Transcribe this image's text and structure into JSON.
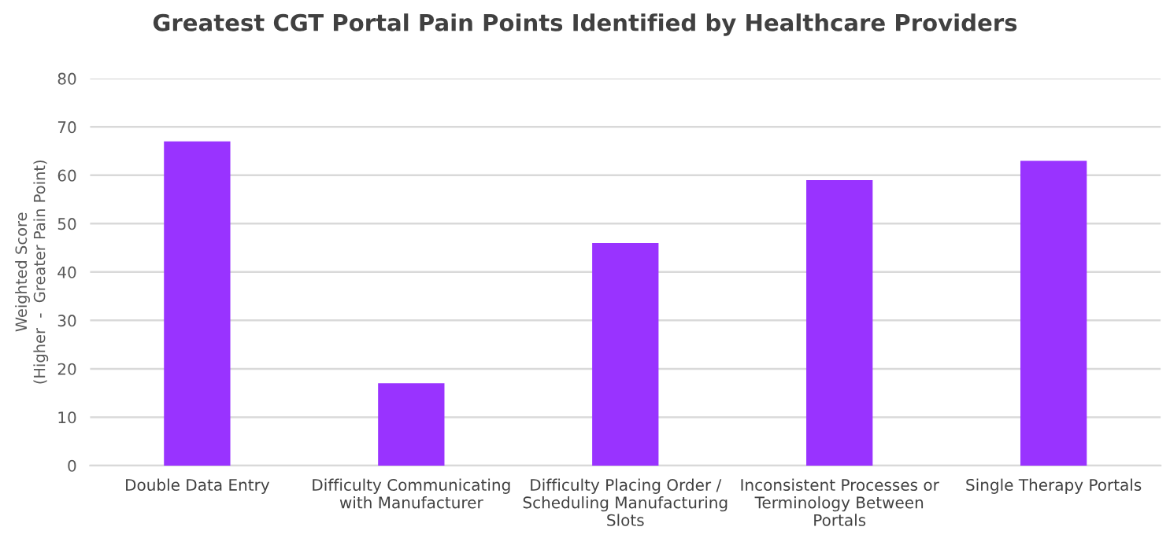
{
  "chart_data": {
    "type": "bar",
    "title": "Greatest CGT Portal Pain Points Identified by Healthcare Providers",
    "ylabel": "Weighted Score\n(Higher  -  Greater Pain Point)",
    "categories": [
      "Double Data Entry",
      "Difficulty Communicating\nwith Manufacturer",
      "Difficulty Placing Order /\nScheduling Manufacturing\nSlots",
      "Inconsistent Processes or\nTerminology Between\nPortals",
      "Single Therapy Portals"
    ],
    "values": [
      67,
      17,
      46,
      59,
      63
    ],
    "color": "#9933ff",
    "ylim": [
      0,
      80
    ],
    "yticks": [
      0,
      10,
      20,
      30,
      40,
      50,
      60,
      70,
      80
    ],
    "grid": "y",
    "legend": false
  }
}
